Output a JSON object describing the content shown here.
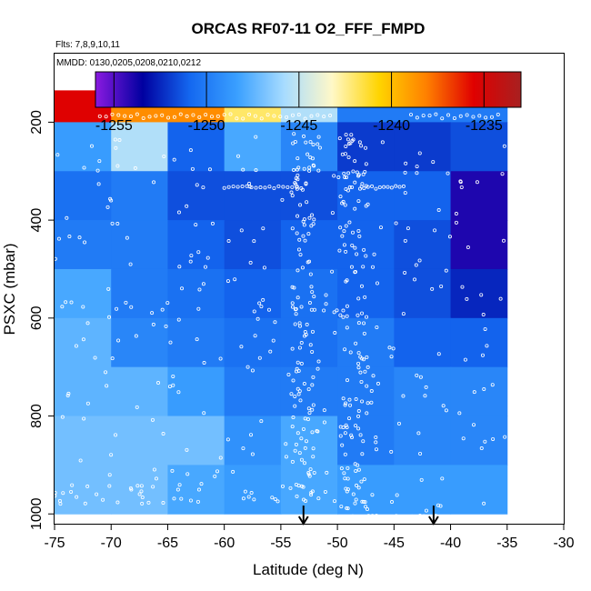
{
  "chart_data": {
    "type": "heatmap",
    "title": "ORCAS RF07-11 O2_FFF_FMPD",
    "flights_note": "Flts: 7,8,9,10,11",
    "dates_note": "MMDD: 0130,0205,0208,0210,0212",
    "xlabel": "Latitude (deg N)",
    "ylabel": "PSXC (mbar)",
    "xlim": [
      -75,
      -30
    ],
    "ylim": [
      1020,
      60
    ],
    "x_ticks": [
      -75,
      -70,
      -65,
      -60,
      -55,
      -50,
      -45,
      -40,
      -35,
      -30
    ],
    "y_ticks": [
      200,
      400,
      600,
      800,
      1000
    ],
    "colorbar": {
      "range": [
        -1256,
        -1233
      ],
      "ticks": [
        -1255,
        -1250,
        -1245,
        -1240,
        -1235
      ],
      "colors": [
        "#8a1ae0",
        "#0000a0",
        "#1468f0",
        "#3aa0ff",
        "#a8dcff",
        "#fff8c8",
        "#ffd400",
        "#ff8000",
        "#e00000",
        "#a82020"
      ]
    },
    "x_bin_edges": [
      -75,
      -70,
      -65,
      -60,
      -55,
      -50,
      -45,
      -40,
      -35
    ],
    "p_bin_edges": [
      100,
      200,
      300,
      400,
      500,
      600,
      700,
      800,
      900,
      1000
    ],
    "cell_values": [
      [
        -1235.5,
        -1238.5,
        -1238.5,
        -1242.0,
        -1245.5,
        -1250.0,
        -1250.0,
        -1250.0
      ],
      [
        -1248.5,
        -1245.5,
        -1251.0,
        -1248.0,
        -1249.5,
        -1252.0,
        -1252.0,
        -1251.5
      ],
      [
        -1250.5,
        -1250.0,
        -1251.5,
        -1251.5,
        -1251.5,
        -1251.0,
        -1251.0,
        -1254.0
      ],
      [
        -1250.0,
        -1250.0,
        -1251.0,
        -1251.5,
        -1251.0,
        -1251.0,
        -1251.5,
        -1254.0
      ],
      [
        -1248.0,
        -1250.0,
        -1250.5,
        -1251.0,
        -1250.5,
        -1251.0,
        -1251.5,
        -1252.5
      ],
      [
        -1247.5,
        -1249.5,
        -1250.0,
        -1250.5,
        -1250.5,
        -1250.0,
        -1251.0,
        -1251.0
      ],
      [
        -1247.5,
        -1247.5,
        -1248.5,
        -1250.0,
        -1250.0,
        -1250.0,
        -1249.5,
        -1249.5
      ],
      [
        -1247.0,
        -1247.0,
        -1247.0,
        -1249.0,
        -1248.0,
        -1250.0,
        -1249.5,
        -1249.5
      ],
      [
        -1247.0,
        -1247.0,
        -1248.0,
        -1248.5,
        -1248.0,
        -1248.5,
        -1248.5,
        -1248.5
      ]
    ],
    "marker_latitudes": [
      -53,
      -41.5
    ]
  }
}
